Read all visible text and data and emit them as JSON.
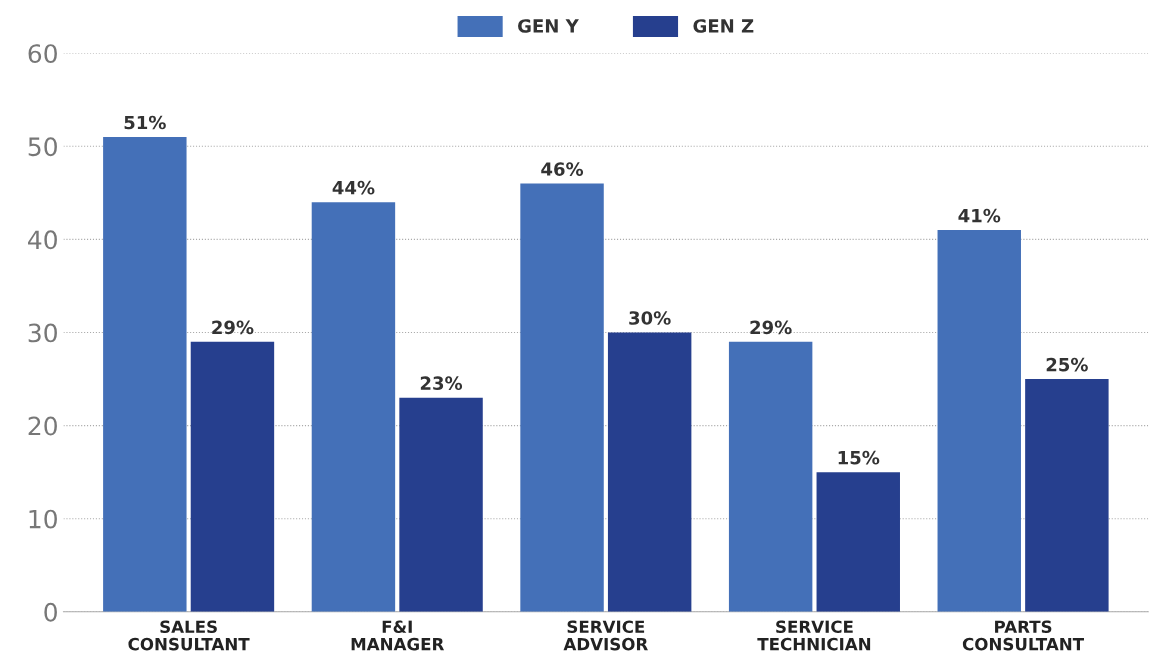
{
  "chart_data": {
    "type": "bar",
    "categories": [
      "SALES\nCONSULTANT",
      "F&I\nMANAGER",
      "SERVICE\nADVISOR",
      "SERVICE\nTECHNICIAN",
      "PARTS\nCONSULTANT"
    ],
    "series": [
      {
        "name": "GEN Y",
        "color": "#4470b8",
        "values": [
          51,
          44,
          46,
          29,
          41
        ],
        "value_labels": [
          "51%",
          "44%",
          "46%",
          "29%",
          "41%"
        ]
      },
      {
        "name": "GEN Z",
        "color": "#263f8e",
        "values": [
          29,
          23,
          30,
          15,
          25
        ],
        "value_labels": [
          "29%",
          "23%",
          "30%",
          "15%",
          "25%"
        ]
      }
    ],
    "ylim": [
      0,
      60
    ],
    "yticks": [
      0,
      10,
      20,
      30,
      40,
      50,
      60
    ],
    "grid": "y",
    "legend": "top"
  }
}
